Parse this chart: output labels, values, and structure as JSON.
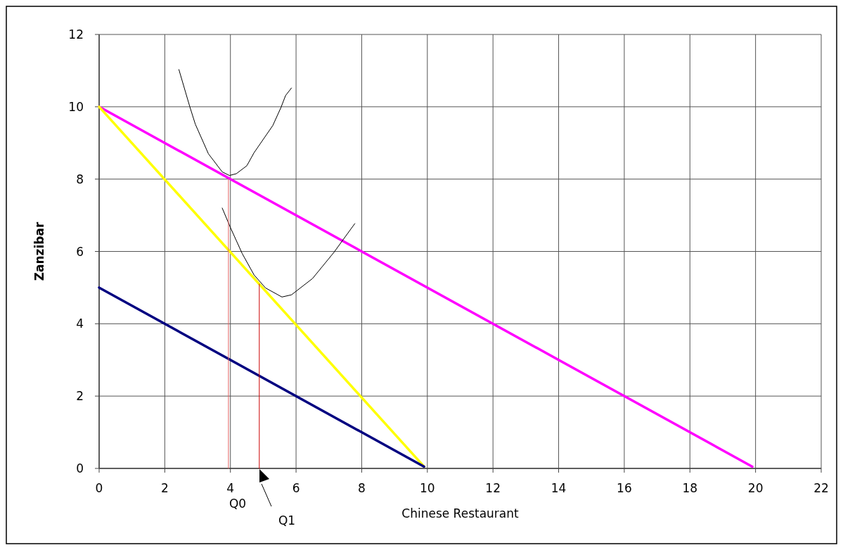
{
  "chart_data": {
    "type": "line",
    "xlabel": "Chinese Restaurant",
    "ylabel": "Zanzibar",
    "xlim": [
      0,
      22
    ],
    "xticks": [
      0,
      2,
      4,
      6,
      8,
      10,
      12,
      14,
      16,
      18,
      20,
      22
    ],
    "ylim": [
      0,
      12
    ],
    "yticks": [
      0,
      2,
      4,
      6,
      8,
      10,
      12
    ],
    "grid": true,
    "marker": "none",
    "line_style": "solid",
    "series": [
      {
        "color": "#ff00ff",
        "x": [
          0,
          19.9
        ],
        "values": [
          10,
          0.05
        ]
      },
      {
        "color": "#ffff00",
        "x": [
          0,
          9.9
        ],
        "values": [
          10,
          0.05
        ]
      },
      {
        "color": "#000080",
        "x": [
          0,
          9.9
        ],
        "values": [
          5,
          0.05
        ]
      },
      {
        "color": "#000000",
        "x": [
          2.43,
          2.76,
          2.93,
          3.33,
          3.75,
          3.97,
          4.18,
          4.5,
          4.72,
          5.29,
          5.54,
          5.68,
          5.86
        ],
        "values": [
          11.03,
          10.01,
          9.52,
          8.7,
          8.2,
          8.1,
          8.15,
          8.37,
          8.73,
          9.48,
          9.98,
          10.31,
          10.52
        ]
      },
      {
        "color": "#000000",
        "x": [
          3.75,
          4,
          4.36,
          4.72,
          5.07,
          5.57,
          5.86,
          6.5,
          7.15,
          7.79
        ],
        "values": [
          7.2,
          6.66,
          5.94,
          5.35,
          4.99,
          4.74,
          4.8,
          5.25,
          5.97,
          6.77
        ]
      },
      {
        "color": "#e06060",
        "x": [
          3.94,
          3.94
        ],
        "values": [
          0,
          8
        ]
      },
      {
        "color": "#cc0000",
        "x": [
          4.88,
          4.88
        ],
        "values": [
          0,
          5.1
        ]
      }
    ],
    "annotations": [
      "Q0",
      "Q1"
    ]
  }
}
